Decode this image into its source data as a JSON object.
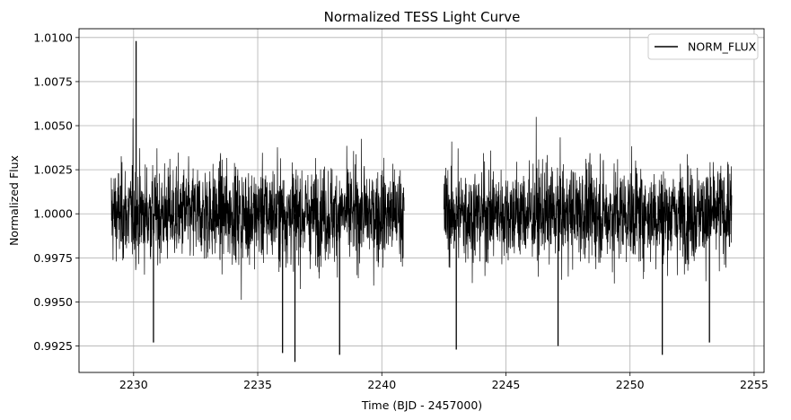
{
  "chart_data": {
    "type": "line",
    "title": "Normalized TESS Light Curve",
    "xlabel": "Time (BJD - 2457000)",
    "ylabel": "Normalized Flux",
    "xlim": [
      2227.8,
      2255.4
    ],
    "ylim": [
      0.991,
      1.0105
    ],
    "xticks": [
      2230,
      2235,
      2240,
      2245,
      2250,
      2255
    ],
    "xtick_labels": [
      "2230",
      "2235",
      "2240",
      "2245",
      "2250",
      "2255"
    ],
    "yticks": [
      0.9925,
      0.995,
      0.9975,
      1.0,
      1.0025,
      1.005,
      1.0075,
      1.01
    ],
    "ytick_labels": [
      "0.9925",
      "0.9950",
      "0.9975",
      "1.0000",
      "1.0025",
      "1.0050",
      "1.0075",
      "1.0100"
    ],
    "grid": true,
    "legend_position": "top-right",
    "series": [
      {
        "name": "NORM_FLUX",
        "color": "#000000",
        "segments": [
          {
            "x_start": 2229.1,
            "x_end": 2240.9
          },
          {
            "x_start": 2242.5,
            "x_end": 2254.1
          }
        ],
        "center": 1.0,
        "typical_range": [
          0.9965,
          1.0045
        ],
        "notable_points": [
          {
            "x": 2230.1,
            "y": 1.0098
          },
          {
            "x": 2236.5,
            "y": 0.9916
          },
          {
            "x": 2236.0,
            "y": 0.9921
          },
          {
            "x": 2238.3,
            "y": 0.992
          },
          {
            "x": 2243.0,
            "y": 0.9923
          },
          {
            "x": 2247.1,
            "y": 0.9925
          },
          {
            "x": 2251.3,
            "y": 0.992
          },
          {
            "x": 2230.8,
            "y": 0.9927
          },
          {
            "x": 2253.2,
            "y": 0.9927
          }
        ]
      }
    ]
  }
}
